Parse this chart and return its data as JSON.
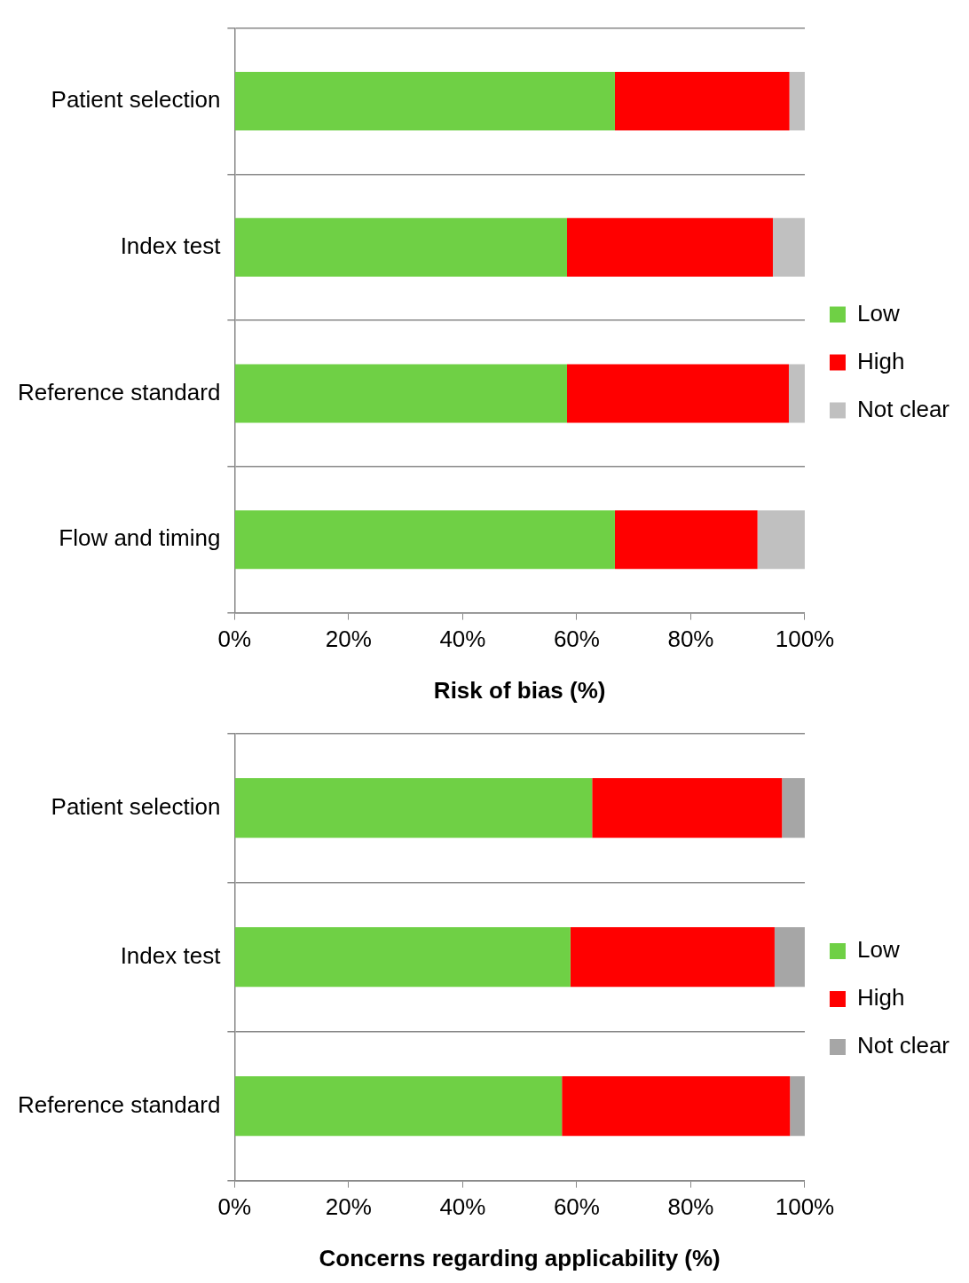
{
  "chart_data": [
    {
      "type": "bar",
      "orientation": "horizontal",
      "stacked": true,
      "xlabel": "Risk of bias (%)",
      "categories": [
        "Patient selection",
        "Index test",
        "Reference standard",
        "Flow and timing"
      ],
      "series": [
        {
          "name": "Low",
          "color": "#6fd045",
          "values": [
            66.7,
            58.3,
            58.3,
            66.7
          ]
        },
        {
          "name": "High",
          "color": "#ff0000",
          "values": [
            30.6,
            36.1,
            38.9,
            25.0
          ]
        },
        {
          "name": "Not clear",
          "color": "#c0c0c0",
          "values": [
            2.7,
            5.6,
            2.8,
            8.3
          ]
        }
      ],
      "xlim": [
        0,
        100
      ],
      "xticks": [
        {
          "value": 0,
          "label": "0%"
        },
        {
          "value": 20,
          "label": "20%"
        },
        {
          "value": 40,
          "label": "40%"
        },
        {
          "value": 60,
          "label": "60%"
        },
        {
          "value": 80,
          "label": "80%"
        },
        {
          "value": 100,
          "label": "100%"
        }
      ],
      "grid": "y",
      "legend": "right"
    },
    {
      "type": "bar",
      "orientation": "horizontal",
      "stacked": true,
      "xlabel": "Concerns regarding applicability (%)",
      "categories": [
        "Patient selection",
        "Index test",
        "Reference standard"
      ],
      "series": [
        {
          "name": "Low",
          "color": "#6fd045",
          "values": [
            62.7,
            58.9,
            57.4
          ]
        },
        {
          "name": "High",
          "color": "#ff0000",
          "values": [
            33.3,
            35.8,
            40.0
          ]
        },
        {
          "name": "Not clear",
          "color": "#a6a6a6",
          "values": [
            4.0,
            5.3,
            2.6
          ]
        }
      ],
      "xlim": [
        0,
        100
      ],
      "xticks": [
        {
          "value": 0,
          "label": "0%"
        },
        {
          "value": 20,
          "label": "20%"
        },
        {
          "value": 40,
          "label": "40%"
        },
        {
          "value": 60,
          "label": "60%"
        },
        {
          "value": 80,
          "label": "80%"
        },
        {
          "value": 100,
          "label": "100%"
        }
      ],
      "grid": "y",
      "legend": "right"
    }
  ]
}
